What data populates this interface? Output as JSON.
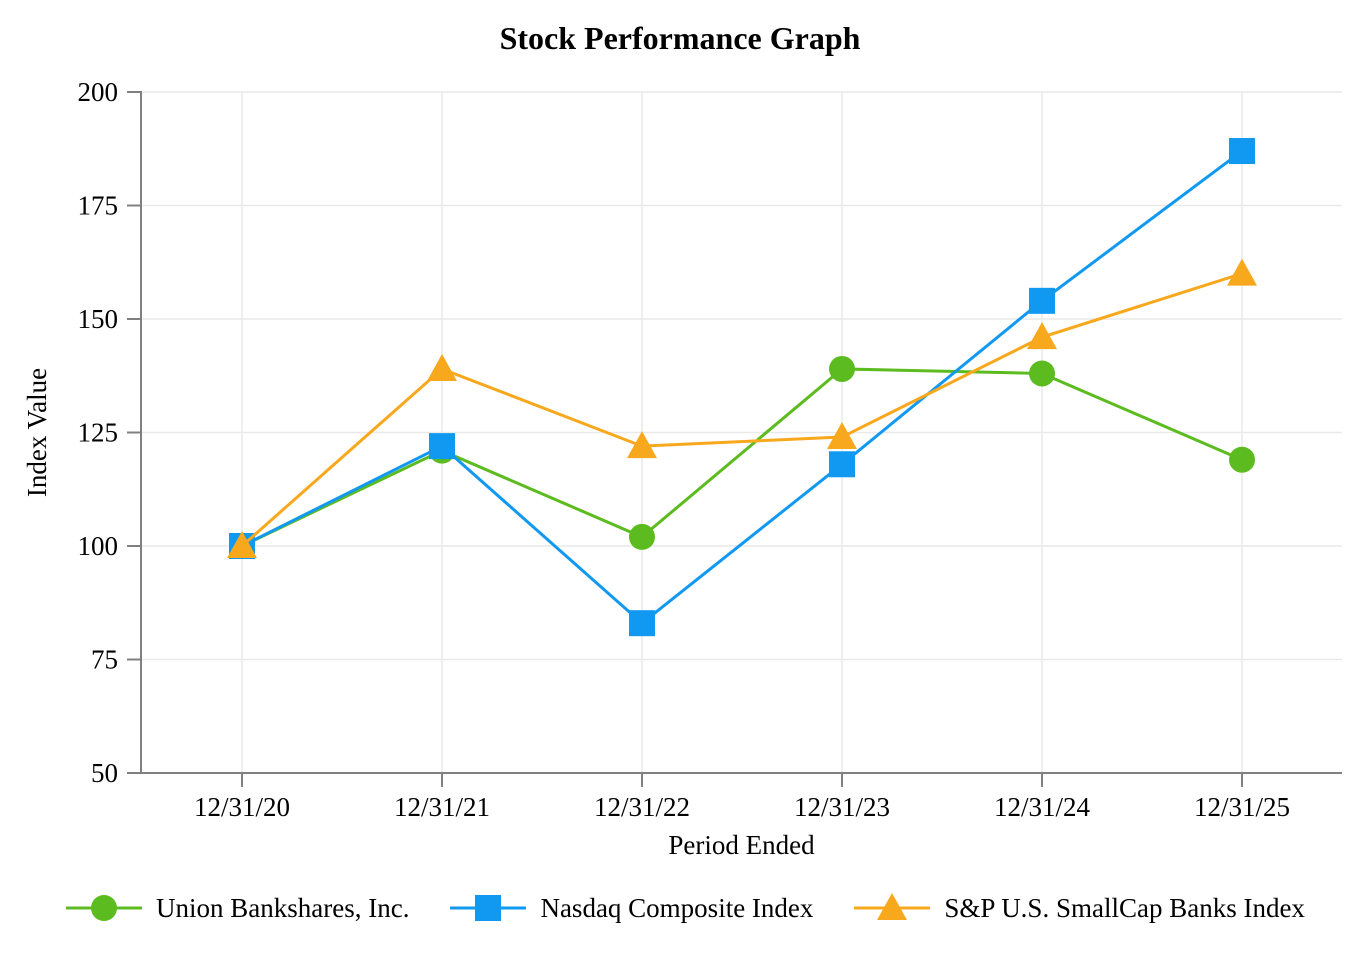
{
  "page": {
    "title": "Stock Performance Graph"
  },
  "chart_data": {
    "type": "line",
    "title": "Stock Performance Graph",
    "xlabel": "Period Ended",
    "ylabel": "Index Value",
    "categories": [
      "12/31/20",
      "12/31/21",
      "12/31/22",
      "12/31/23",
      "12/31/24",
      "12/31/25"
    ],
    "ylim": [
      50,
      200
    ],
    "yticks": [
      50,
      75,
      100,
      125,
      150,
      175,
      200
    ],
    "grid": true,
    "legend_position": "bottom",
    "series": [
      {
        "name": "Union Bankshares, Inc.",
        "marker": "circle",
        "color": "#5cbb1f",
        "values": [
          100,
          121,
          102,
          139,
          138,
          119
        ]
      },
      {
        "name": "Nasdaq Composite Index",
        "marker": "square",
        "color": "#1199f2",
        "values": [
          100,
          122,
          83,
          118,
          154,
          187
        ]
      },
      {
        "name": "S&P U.S. SmallCap Banks Index",
        "marker": "triangle",
        "color": "#f8a81d",
        "values": [
          100,
          139,
          122,
          124,
          146,
          160
        ]
      }
    ]
  },
  "colors": {
    "axis": "#808080",
    "gridline": "#e9e9e9",
    "text": "#000000"
  }
}
